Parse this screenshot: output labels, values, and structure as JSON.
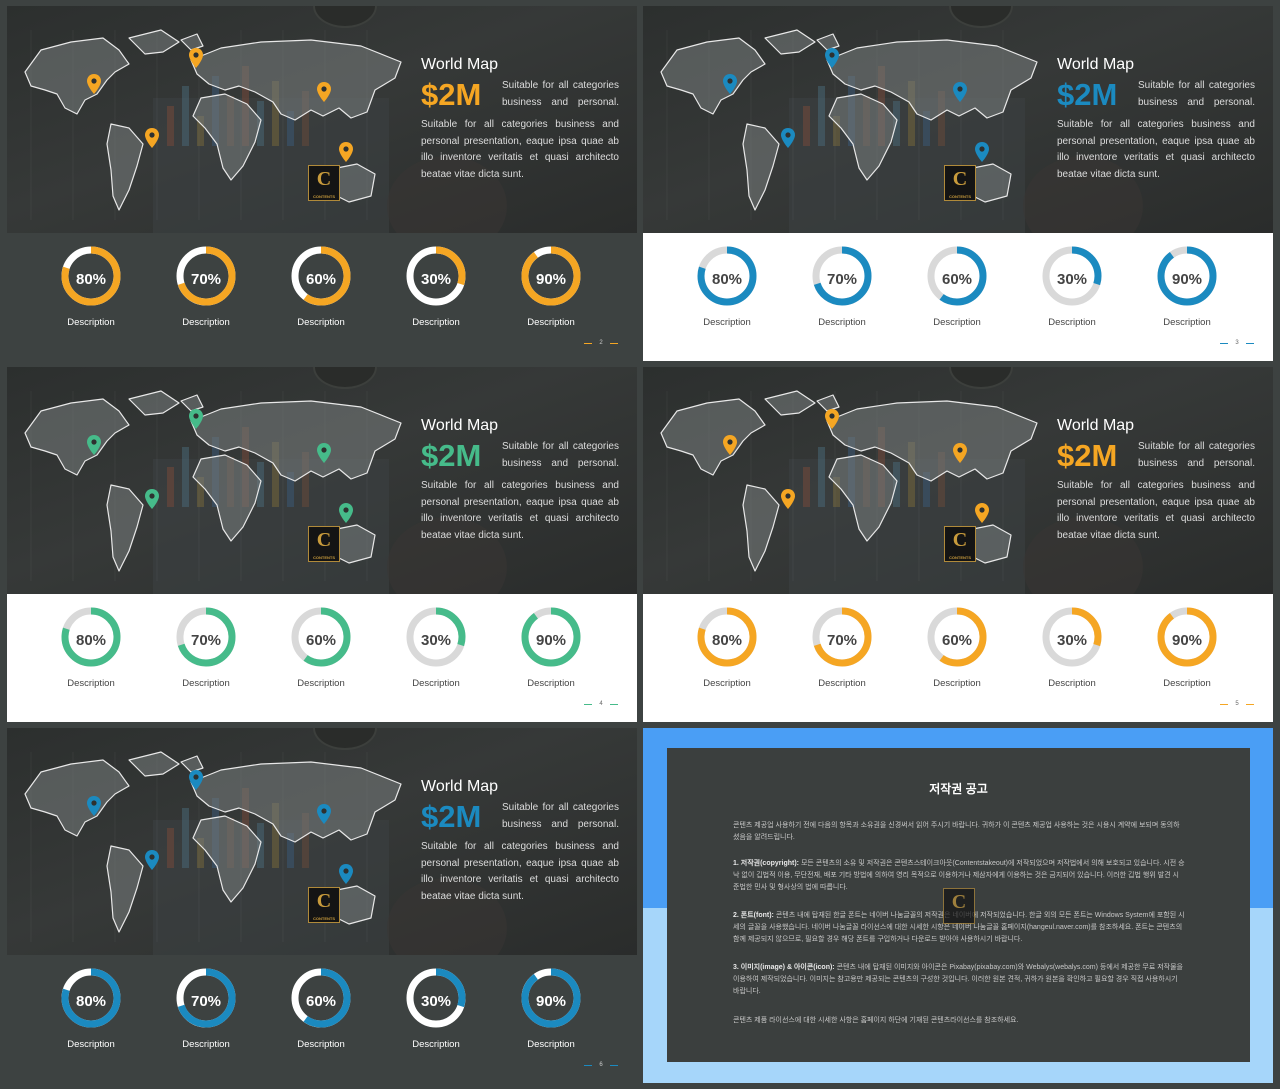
{
  "colors": {
    "orange": "#f5a623",
    "blue": "#1b8ac0",
    "green": "#46bb8a",
    "ring_track_dark": "#ffffff",
    "ring_track_light": "#d9d9d9"
  },
  "slides": [
    {
      "theme": "dark",
      "accent": "#f5a623",
      "title": "World Map",
      "amount": "$2M",
      "subtitle": [
        "Suitable for all categories",
        "business and personal."
      ],
      "body": [
        "Suitable for all categories business and",
        "personal presentation, eaque ipsa quae ab",
        "illo inventore veritatis et quasi architecto",
        "beatae vitae dicta sunt."
      ],
      "stats": [
        {
          "label": "80%",
          "value": 0.8,
          "desc": "Description"
        },
        {
          "label": "70%",
          "value": 0.7,
          "desc": "Description"
        },
        {
          "label": "60%",
          "value": 0.6,
          "desc": "Description"
        },
        {
          "label": "30%",
          "value": 0.3,
          "desc": "Description"
        },
        {
          "label": "90%",
          "value": 0.9,
          "desc": "Description"
        }
      ],
      "page": "2",
      "logo": "C"
    },
    {
      "theme": "light",
      "accent": "#1b8ac0",
      "title": "World Map",
      "amount": "$2M",
      "subtitle": [
        "Suitable for all categories",
        "business and personal."
      ],
      "body": [
        "Suitable for all categories business and",
        "personal presentation, eaque ipsa quae ab",
        "illo inventore veritatis et quasi architecto",
        "beatae vitae dicta sunt."
      ],
      "stats": [
        {
          "label": "80%",
          "value": 0.8,
          "desc": "Description"
        },
        {
          "label": "70%",
          "value": 0.7,
          "desc": "Description"
        },
        {
          "label": "60%",
          "value": 0.6,
          "desc": "Description"
        },
        {
          "label": "30%",
          "value": 0.3,
          "desc": "Description"
        },
        {
          "label": "90%",
          "value": 0.9,
          "desc": "Description"
        }
      ],
      "page": "3",
      "logo": "C"
    },
    {
      "theme": "light",
      "accent": "#46bb8a",
      "title": "World Map",
      "amount": "$2M",
      "subtitle": [
        "Suitable for all categories",
        "business and personal."
      ],
      "body": [
        "Suitable for all categories business and",
        "personal presentation, eaque ipsa quae ab",
        "illo inventore veritatis et quasi architecto",
        "beatae vitae dicta sunt."
      ],
      "stats": [
        {
          "label": "80%",
          "value": 0.8,
          "desc": "Description"
        },
        {
          "label": "70%",
          "value": 0.7,
          "desc": "Description"
        },
        {
          "label": "60%",
          "value": 0.6,
          "desc": "Description"
        },
        {
          "label": "30%",
          "value": 0.3,
          "desc": "Description"
        },
        {
          "label": "90%",
          "value": 0.9,
          "desc": "Description"
        }
      ],
      "page": "4",
      "logo": "C"
    },
    {
      "theme": "light",
      "accent": "#f5a623",
      "title": "World Map",
      "amount": "$2M",
      "subtitle": [
        "Suitable for all categories",
        "business and personal."
      ],
      "body": [
        "Suitable for all categories business and",
        "personal presentation, eaque ipsa quae ab",
        "illo inventore veritatis et quasi architecto",
        "beatae vitae dicta sunt."
      ],
      "stats": [
        {
          "label": "80%",
          "value": 0.8,
          "desc": "Description"
        },
        {
          "label": "70%",
          "value": 0.7,
          "desc": "Description"
        },
        {
          "label": "60%",
          "value": 0.6,
          "desc": "Description"
        },
        {
          "label": "30%",
          "value": 0.3,
          "desc": "Description"
        },
        {
          "label": "90%",
          "value": 0.9,
          "desc": "Description"
        }
      ],
      "page": "5",
      "logo": "C"
    },
    {
      "theme": "dark",
      "accent": "#1b8ac0",
      "title": "World Map",
      "amount": "$2M",
      "subtitle": [
        "Suitable for all categories",
        "business and personal."
      ],
      "body": [
        "Suitable for all categories business and",
        "personal presentation, eaque ipsa quae ab",
        "illo inventore veritatis et quasi architecto",
        "beatae vitae dicta sunt."
      ],
      "stats": [
        {
          "label": "80%",
          "value": 0.8,
          "desc": "Description"
        },
        {
          "label": "70%",
          "value": 0.7,
          "desc": "Description"
        },
        {
          "label": "60%",
          "value": 0.6,
          "desc": "Description"
        },
        {
          "label": "30%",
          "value": 0.3,
          "desc": "Description"
        },
        {
          "label": "90%",
          "value": 0.9,
          "desc": "Description"
        }
      ],
      "page": "6",
      "logo": "C"
    }
  ],
  "copyright": {
    "title": "저작권 공고",
    "intro": "콘텐츠 제공업 사용하기 전에 다음의 항목과 소유권을 신경써서 읽어 주시기 바랍니다. 귀하가 이 콘텐츠 제공업 사용하는 것은 시용시 계약에 보되며 동의하셨음을 알려드립니다.",
    "items": [
      {
        "head": "1. 저작권(copyright):",
        "text": "모든 콘텐츠의 소유 및 저작권은 콘텐츠스테이크아웃(Contentstakeout)에 저작되었으며 저작법에서 의해 보호되고 있습니다. 시전 승낙 없이 깁법적 이용, 무단전재, 배포 기타 방법에 의하여 영리 목적으로 이용하거나 제삼자에게 이용하는 것은 금지되어 있습니다. 이러한 깁법 행위 발견 시 준법한 민사 및 형사상의 법에 따릅니다."
      },
      {
        "head": "2. 폰트(font):",
        "text": "콘텐츠 내에 탑재된 한글 폰트는 네이버 나눔글꼴의 저작권은 네이버에 저작되었습니다. 한글 외의 모든 폰트는 Windows System에 포함된 시세의 글꼴을 사용했습니다. 네이버 나눔글꼴 라이선스에 대한 시세한 시항은 네이버 나눔글꼴 홈페이지(hangeul.naver.com)를 참조하세요. 폰트는 콘텐츠의 함께 제공되지 않으므로, 필요할 경우 해당 폰트를 구입하거나 다운로드 받아야 사용하시기 바랍니다."
      },
      {
        "head": "3. 이미지(image) & 아이콘(icon):",
        "text": "콘텐츠 내에 탑재된 이미지와 아이콘은 Pixabay(pixabay.com)와 Webalys(webalys.com) 등에서 제공한 무료 저작물을 이용하여 제작되었습니다. 이미지는 참고용만 제공되는 콘텐츠의 구성한 것입니다. 이러한 원본 견적, 귀하가 원본을 확인하고 필요할 경우 직접 사용하시기 바랍니다."
      }
    ],
    "outro": "콘텐츠 제품 라이선스에 대한 시세한 사항은 홈페이지 하단에 기재된 콘텐츠라이선스를 참조하세요.",
    "watermark": "C"
  }
}
